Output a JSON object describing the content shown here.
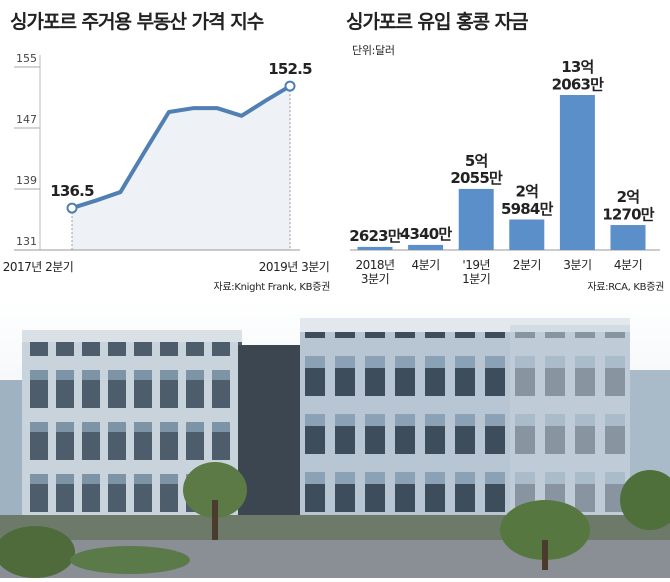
{
  "chart_data": [
    {
      "type": "line",
      "title": "싱가포르 주거용 부동산 가격 지수",
      "categories": [
        "2017년 2분기",
        null,
        null,
        null,
        null,
        null,
        null,
        null,
        null,
        "2019년 3분기"
      ],
      "values": [
        136.5,
        137.5,
        138.6,
        143.9,
        149.1,
        149.6,
        149.6,
        148.6,
        150.6,
        152.5
      ],
      "ylim": [
        131,
        155
      ],
      "yticks": [
        131,
        139,
        147,
        155
      ],
      "color": "#4f7fb3",
      "source": "자료:Knight Frank, KB증권"
    },
    {
      "type": "bar",
      "title": "싱가포르 유입 홍콩 자금",
      "subtitle": "단위:달러",
      "categories": [
        "2018년\n3분기",
        "4분기",
        "'19년\n1분기",
        "2분기",
        "3분기",
        "4분기"
      ],
      "values": [
        2623,
        4340,
        52055,
        25984,
        132063,
        21270
      ],
      "value_labels": [
        "2623만",
        "4340만",
        "5억\n2055만",
        "2억\n5984만",
        "13억\n2063만",
        "2억\n1270만"
      ],
      "color": "#5b8fca",
      "source": "자료:RCA, KB증권"
    }
  ]
}
